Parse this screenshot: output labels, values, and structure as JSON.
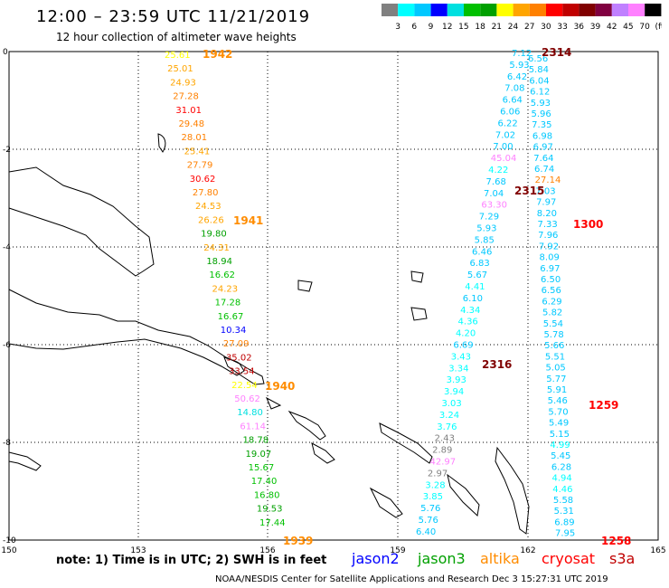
{
  "title": "12:00 – 23:59 UTC 11/21/2019",
  "subtitle": "12 hour collection of altimeter wave heights",
  "colorbar": {
    "colors": [
      "#808080",
      "#00ffff",
      "#00c8ff",
      "#0000ff",
      "#00e0e0",
      "#00c000",
      "#00a000",
      "#ffff00",
      "#ffa500",
      "#ff8000",
      "#ff0000",
      "#c00000",
      "#800000",
      "#800040",
      "#c080ff",
      "#ff80ff",
      "#000000"
    ],
    "labels": [
      "3",
      "6",
      "9",
      "12",
      "15",
      "18",
      "21",
      "24",
      "27",
      "30",
      "33",
      "36",
      "39",
      "42",
      "45",
      "70",
      "(ft)"
    ]
  },
  "axes": {
    "x_ticks": [
      "150",
      "153",
      "156",
      "159",
      "162",
      "165"
    ],
    "y_ticks": [
      "0",
      "-2",
      "-4",
      "-6",
      "-8",
      "-10"
    ]
  },
  "note": "note: 1) Time is in UTC; 2) SWH is in feet",
  "legend": [
    {
      "name": "jason2",
      "color": "#0000ff"
    },
    {
      "name": "jason3",
      "color": "#00a000"
    },
    {
      "name": "altika",
      "color": "#ff8c00"
    },
    {
      "name": "cryosat",
      "color": "#ff0000"
    },
    {
      "name": "s3a",
      "color": "#c00000"
    }
  ],
  "footer": "NOAA/NESDIS Center for Satellite Applications and Research   Dec  3 15:27:31 UTC 2019",
  "times": [
    {
      "text": "1942",
      "color": "#ff8c00"
    },
    {
      "text": "1941",
      "color": "#ff8c00"
    },
    {
      "text": "1940",
      "color": "#ff8c00"
    },
    {
      "text": "1939",
      "color": "#ff8c00"
    },
    {
      "text": "2316",
      "color": "#800000"
    },
    {
      "text": "2315",
      "color": "#800000"
    },
    {
      "text": "2314",
      "color": "#800000"
    },
    {
      "text": "1300",
      "color": "#ff0000"
    },
    {
      "text": "1259",
      "color": "#ff0000"
    },
    {
      "text": "1258",
      "color": "#ff0000"
    }
  ],
  "tracks": {
    "altika_west": [
      {
        "v": "25.61",
        "c": "#ffff00"
      },
      {
        "v": "25.01",
        "c": "#ffa500"
      },
      {
        "v": "24.93",
        "c": "#ffa500"
      },
      {
        "v": "27.28",
        "c": "#ff8000"
      },
      {
        "v": "31.01",
        "c": "#ff0000"
      },
      {
        "v": "29.48",
        "c": "#ff8000"
      },
      {
        "v": "28.01",
        "c": "#ff8000"
      },
      {
        "v": "25.41",
        "c": "#ffa500"
      },
      {
        "v": "27.79",
        "c": "#ff8000"
      },
      {
        "v": "30.62",
        "c": "#ff0000"
      },
      {
        "v": "27.80",
        "c": "#ff8000"
      },
      {
        "v": "24.53",
        "c": "#ffa500"
      },
      {
        "v": "26.26",
        "c": "#ffa500"
      },
      {
        "v": "19.80",
        "c": "#00a000"
      },
      {
        "v": "24.31",
        "c": "#ffa500"
      },
      {
        "v": "18.94",
        "c": "#00a000"
      },
      {
        "v": "16.62",
        "c": "#00c000"
      },
      {
        "v": "24.23",
        "c": "#ffa500"
      },
      {
        "v": "17.28",
        "c": "#00c000"
      },
      {
        "v": "16.67",
        "c": "#00c000"
      },
      {
        "v": "10.34",
        "c": "#0000ff"
      },
      {
        "v": "27.09",
        "c": "#ff8000"
      },
      {
        "v": "35.02",
        "c": "#c00000"
      },
      {
        "v": "33.54",
        "c": "#c00000"
      },
      {
        "v": "22.54",
        "c": "#ffff00"
      },
      {
        "v": "50.62",
        "c": "#ff80ff"
      },
      {
        "v": "14.80",
        "c": "#00e0e0"
      },
      {
        "v": "61.14",
        "c": "#ff80ff"
      },
      {
        "v": "18.78",
        "c": "#00a000"
      },
      {
        "v": "19.07",
        "c": "#00a000"
      },
      {
        "v": "15.67",
        "c": "#00c000"
      },
      {
        "v": "17.40",
        "c": "#00c000"
      },
      {
        "v": "16.80",
        "c": "#00c000"
      },
      {
        "v": "19.53",
        "c": "#00a000"
      },
      {
        "v": "17.44",
        "c": "#00c000"
      }
    ],
    "s3a_mid": [
      {
        "v": "7.12",
        "c": "#00c8ff"
      },
      {
        "v": "5.93",
        "c": "#00c8ff"
      },
      {
        "v": "6.42",
        "c": "#00c8ff"
      },
      {
        "v": "7.08",
        "c": "#00c8ff"
      },
      {
        "v": "6.64",
        "c": "#00c8ff"
      },
      {
        "v": "6.06",
        "c": "#00c8ff"
      },
      {
        "v": "6.22",
        "c": "#00c8ff"
      },
      {
        "v": "7.02",
        "c": "#00c8ff"
      },
      {
        "v": "7.00",
        "c": "#00c8ff"
      },
      {
        "v": "45.04",
        "c": "#ff80ff"
      },
      {
        "v": "4.22",
        "c": "#00ffff"
      },
      {
        "v": "7.68",
        "c": "#00c8ff"
      },
      {
        "v": "7.04",
        "c": "#00c8ff"
      },
      {
        "v": "63.30",
        "c": "#ff80ff"
      },
      {
        "v": "7.29",
        "c": "#00c8ff"
      },
      {
        "v": "5.93",
        "c": "#00c8ff"
      },
      {
        "v": "5.85",
        "c": "#00c8ff"
      },
      {
        "v": "6.46",
        "c": "#00c8ff"
      },
      {
        "v": "6.83",
        "c": "#00c8ff"
      },
      {
        "v": "5.67",
        "c": "#00c8ff"
      },
      {
        "v": "4.41",
        "c": "#00ffff"
      },
      {
        "v": "6.10",
        "c": "#00c8ff"
      },
      {
        "v": "4.34",
        "c": "#00ffff"
      },
      {
        "v": "4.36",
        "c": "#00ffff"
      },
      {
        "v": "4.20",
        "c": "#00ffff"
      },
      {
        "v": "6.69",
        "c": "#00c8ff"
      },
      {
        "v": "3.43",
        "c": "#00ffff"
      },
      {
        "v": "3.34",
        "c": "#00ffff"
      },
      {
        "v": "3.93",
        "c": "#00ffff"
      },
      {
        "v": "3.94",
        "c": "#00ffff"
      },
      {
        "v": "3.03",
        "c": "#00ffff"
      },
      {
        "v": "3.24",
        "c": "#00ffff"
      },
      {
        "v": "3.76",
        "c": "#00ffff"
      },
      {
        "v": "2.43",
        "c": "#808080"
      },
      {
        "v": "2.89",
        "c": "#808080"
      },
      {
        "v": "42.97",
        "c": "#ff80ff"
      },
      {
        "v": "2.97",
        "c": "#808080"
      },
      {
        "v": "3.28",
        "c": "#00ffff"
      },
      {
        "v": "3.85",
        "c": "#00ffff"
      },
      {
        "v": "5.76",
        "c": "#00c8ff"
      },
      {
        "v": "5.76",
        "c": "#00c8ff"
      },
      {
        "v": "6.40",
        "c": "#00c8ff"
      }
    ],
    "cryosat_east": [
      {
        "v": "6.56",
        "c": "#00c8ff"
      },
      {
        "v": "5.84",
        "c": "#00c8ff"
      },
      {
        "v": "6.04",
        "c": "#00c8ff"
      },
      {
        "v": "6.12",
        "c": "#00c8ff"
      },
      {
        "v": "5.93",
        "c": "#00c8ff"
      },
      {
        "v": "5.96",
        "c": "#00c8ff"
      },
      {
        "v": "7.35",
        "c": "#00c8ff"
      },
      {
        "v": "6.98",
        "c": "#00c8ff"
      },
      {
        "v": "6.97",
        "c": "#00c8ff"
      },
      {
        "v": "7.64",
        "c": "#00c8ff"
      },
      {
        "v": "6.74",
        "c": "#00c8ff"
      },
      {
        "v": "27.14",
        "c": "#ff8000"
      },
      {
        "v": "7.03",
        "c": "#00c8ff"
      },
      {
        "v": "7.97",
        "c": "#00c8ff"
      },
      {
        "v": "8.20",
        "c": "#00c8ff"
      },
      {
        "v": "7.33",
        "c": "#00c8ff"
      },
      {
        "v": "7.96",
        "c": "#00c8ff"
      },
      {
        "v": "7.92",
        "c": "#00c8ff"
      },
      {
        "v": "8.09",
        "c": "#00c8ff"
      },
      {
        "v": "6.97",
        "c": "#00c8ff"
      },
      {
        "v": "6.50",
        "c": "#00c8ff"
      },
      {
        "v": "6.56",
        "c": "#00c8ff"
      },
      {
        "v": "6.29",
        "c": "#00c8ff"
      },
      {
        "v": "5.82",
        "c": "#00c8ff"
      },
      {
        "v": "5.54",
        "c": "#00c8ff"
      },
      {
        "v": "5.78",
        "c": "#00c8ff"
      },
      {
        "v": "5.66",
        "c": "#00c8ff"
      },
      {
        "v": "5.51",
        "c": "#00c8ff"
      },
      {
        "v": "5.05",
        "c": "#00c8ff"
      },
      {
        "v": "5.77",
        "c": "#00c8ff"
      },
      {
        "v": "5.91",
        "c": "#00c8ff"
      },
      {
        "v": "5.46",
        "c": "#00c8ff"
      },
      {
        "v": "5.70",
        "c": "#00c8ff"
      },
      {
        "v": "5.49",
        "c": "#00c8ff"
      },
      {
        "v": "5.15",
        "c": "#00c8ff"
      },
      {
        "v": "4.99",
        "c": "#00ffff"
      },
      {
        "v": "5.45",
        "c": "#00c8ff"
      },
      {
        "v": "6.28",
        "c": "#00c8ff"
      },
      {
        "v": "4.94",
        "c": "#00ffff"
      },
      {
        "v": "4.46",
        "c": "#00ffff"
      },
      {
        "v": "5.58",
        "c": "#00c8ff"
      },
      {
        "v": "5.31",
        "c": "#00c8ff"
      },
      {
        "v": "6.89",
        "c": "#00c8ff"
      },
      {
        "v": "7.95",
        "c": "#00c8ff"
      }
    ]
  }
}
